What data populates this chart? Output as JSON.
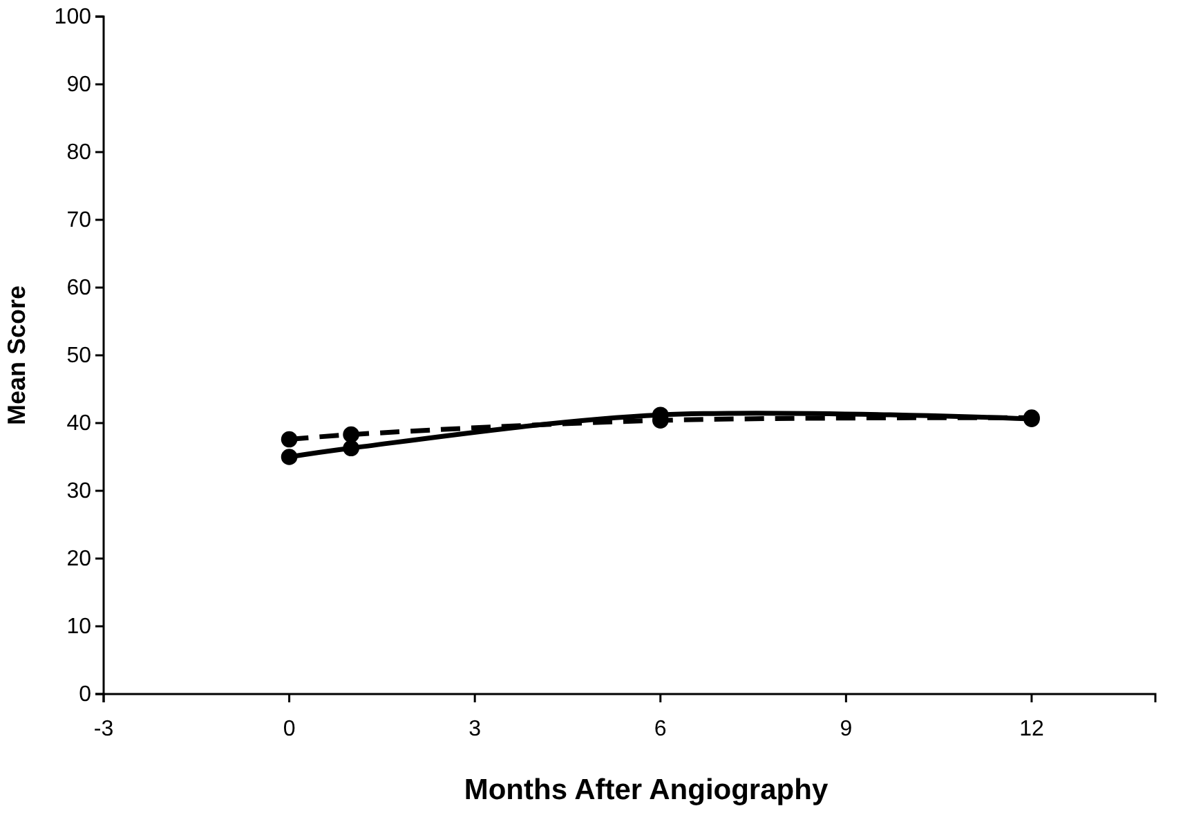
{
  "chart_data": {
    "type": "line",
    "xlabel": "Months After Angiography",
    "ylabel": "Mean Score",
    "xlim": [
      -3,
      14
    ],
    "xticks": [
      -3,
      0,
      3,
      6,
      9,
      12
    ],
    "ylim": [
      0,
      100
    ],
    "yticks": [
      0,
      10,
      20,
      30,
      40,
      50,
      60,
      70,
      80,
      90,
      100
    ],
    "grid": false,
    "marker": "circle",
    "series": [
      {
        "color": "#000000",
        "line_style": "solid",
        "x": [
          0,
          1,
          6,
          12
        ],
        "values": [
          35.0,
          36.3,
          41.2,
          40.6
        ]
      },
      {
        "color": "#000000",
        "line_style": "dashed",
        "x": [
          0,
          1,
          6,
          12
        ],
        "values": [
          37.6,
          38.3,
          40.4,
          40.8
        ]
      }
    ]
  }
}
